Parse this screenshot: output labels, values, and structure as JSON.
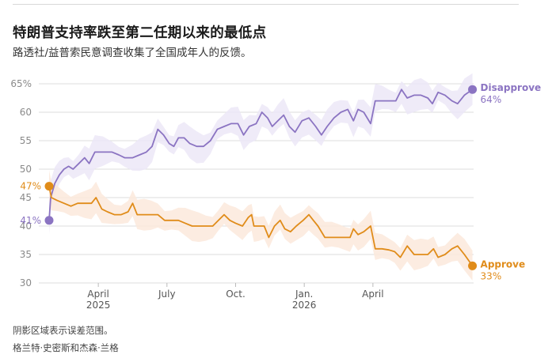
{
  "title": "特朗普支持率跌至第二任期以来的最低点",
  "subtitle": "路透社/益普索民意调查收集了全国成年人的反馈。",
  "footnotes": {
    "note": "阴影区域表示误差范围。",
    "credit": "格兰特·史密斯和杰森·兰格"
  },
  "chart_data": {
    "type": "line",
    "title": "特朗普支持率跌至第二任期以来的最低点",
    "subtitle": "路透社/益普索民意调查收集了全国成年人的反馈。",
    "x_unit": "month",
    "xlim": [
      0.0,
      19.0
    ],
    "ylim": [
      30,
      65
    ],
    "y_ticks": [
      30,
      35,
      40,
      45,
      50,
      55,
      60,
      65
    ],
    "y_tick_labels": [
      "30",
      "35",
      "40",
      "45",
      "50",
      "55",
      "60",
      "65%"
    ],
    "x_ticks": [
      {
        "x": 2.6,
        "label": "April",
        "sublabel": "2025"
      },
      {
        "x": 5.6,
        "label": "July",
        "sublabel": ""
      },
      {
        "x": 8.6,
        "label": "Oct.",
        "sublabel": ""
      },
      {
        "x": 11.6,
        "label": "Jan.",
        "sublabel": "2026"
      },
      {
        "x": 14.6,
        "label": "April",
        "sublabel": ""
      }
    ],
    "grid": true,
    "shaded_band": "margin of error",
    "series": [
      {
        "name": "Disapprove",
        "color": "#8b74c2",
        "band_color": "#ece8f7",
        "start_label": "41%",
        "end_label": "64%",
        "points": [
          [
            0.45,
            41
          ],
          [
            0.52,
            45
          ],
          [
            0.7,
            47.5
          ],
          [
            0.9,
            49
          ],
          [
            1.1,
            50
          ],
          [
            1.3,
            50.5
          ],
          [
            1.5,
            50
          ],
          [
            1.75,
            51
          ],
          [
            2.0,
            52
          ],
          [
            2.2,
            51
          ],
          [
            2.45,
            53
          ],
          [
            2.8,
            53
          ],
          [
            3.2,
            53
          ],
          [
            3.5,
            52.5
          ],
          [
            3.75,
            52
          ],
          [
            4.1,
            52
          ],
          [
            4.4,
            52.5
          ],
          [
            4.7,
            53
          ],
          [
            4.95,
            54
          ],
          [
            5.2,
            57
          ],
          [
            5.45,
            56
          ],
          [
            5.7,
            54.5
          ],
          [
            5.9,
            54
          ],
          [
            6.1,
            55.5
          ],
          [
            6.35,
            55.5
          ],
          [
            6.6,
            54.5
          ],
          [
            6.9,
            54
          ],
          [
            7.2,
            54
          ],
          [
            7.5,
            55
          ],
          [
            7.8,
            57
          ],
          [
            8.1,
            57.5
          ],
          [
            8.4,
            58
          ],
          [
            8.7,
            58
          ],
          [
            8.95,
            56
          ],
          [
            9.2,
            57.5
          ],
          [
            9.5,
            58
          ],
          [
            9.75,
            60
          ],
          [
            10.0,
            59
          ],
          [
            10.2,
            57.5
          ],
          [
            10.45,
            58.5
          ],
          [
            10.7,
            59.5
          ],
          [
            10.95,
            57.5
          ],
          [
            11.2,
            56.5
          ],
          [
            11.5,
            58.5
          ],
          [
            11.8,
            59
          ],
          [
            12.1,
            57.5
          ],
          [
            12.35,
            56
          ],
          [
            12.6,
            57.5
          ],
          [
            12.9,
            59
          ],
          [
            13.2,
            60
          ],
          [
            13.5,
            60.5
          ],
          [
            13.75,
            58.5
          ],
          [
            13.95,
            60.5
          ],
          [
            14.2,
            60
          ],
          [
            14.5,
            58
          ],
          [
            14.7,
            62
          ],
          [
            15.0,
            62
          ],
          [
            15.3,
            62
          ],
          [
            15.6,
            62
          ],
          [
            15.85,
            64
          ],
          [
            16.1,
            62.5
          ],
          [
            16.4,
            63
          ],
          [
            16.7,
            63
          ],
          [
            17.0,
            62.5
          ],
          [
            17.2,
            61.5
          ],
          [
            17.45,
            63.5
          ],
          [
            17.75,
            63
          ],
          [
            18.05,
            62
          ],
          [
            18.3,
            61.5
          ],
          [
            18.6,
            63
          ],
          [
            18.95,
            64
          ]
        ]
      },
      {
        "name": "Approve",
        "color": "#e08c1a",
        "band_color": "#fce9dc",
        "start_label": "47%",
        "end_label": "33%",
        "points": [
          [
            0.45,
            47
          ],
          [
            0.55,
            45
          ],
          [
            0.8,
            44.5
          ],
          [
            1.1,
            44
          ],
          [
            1.4,
            43.5
          ],
          [
            1.7,
            44
          ],
          [
            2.0,
            44
          ],
          [
            2.3,
            44
          ],
          [
            2.5,
            45
          ],
          [
            2.75,
            43
          ],
          [
            3.0,
            42.5
          ],
          [
            3.3,
            42
          ],
          [
            3.6,
            42
          ],
          [
            3.9,
            42.5
          ],
          [
            4.1,
            44
          ],
          [
            4.3,
            42
          ],
          [
            4.6,
            42
          ],
          [
            4.9,
            42
          ],
          [
            5.2,
            42
          ],
          [
            5.5,
            41
          ],
          [
            5.8,
            41
          ],
          [
            6.1,
            41
          ],
          [
            6.4,
            40.5
          ],
          [
            6.7,
            40
          ],
          [
            7.0,
            40
          ],
          [
            7.3,
            40
          ],
          [
            7.6,
            40
          ],
          [
            7.85,
            41
          ],
          [
            8.1,
            42
          ],
          [
            8.35,
            41
          ],
          [
            8.6,
            40.5
          ],
          [
            8.9,
            40
          ],
          [
            9.15,
            41.5
          ],
          [
            9.3,
            42
          ],
          [
            9.4,
            40
          ],
          [
            9.6,
            40
          ],
          [
            9.85,
            40
          ],
          [
            10.05,
            38
          ],
          [
            10.3,
            40
          ],
          [
            10.55,
            41
          ],
          [
            10.75,
            39.5
          ],
          [
            11.0,
            39
          ],
          [
            11.25,
            40
          ],
          [
            11.55,
            41
          ],
          [
            11.8,
            42
          ],
          [
            12.0,
            41
          ],
          [
            12.2,
            40
          ],
          [
            12.5,
            38
          ],
          [
            12.8,
            38
          ],
          [
            13.1,
            38
          ],
          [
            13.4,
            38
          ],
          [
            13.6,
            38
          ],
          [
            13.75,
            39.5
          ],
          [
            13.95,
            38.5
          ],
          [
            14.2,
            39
          ],
          [
            14.5,
            40
          ],
          [
            14.7,
            36
          ],
          [
            15.0,
            36
          ],
          [
            15.3,
            35.8
          ],
          [
            15.55,
            35.5
          ],
          [
            15.8,
            34.5
          ],
          [
            16.1,
            36.5
          ],
          [
            16.4,
            35
          ],
          [
            16.7,
            35
          ],
          [
            17.0,
            35
          ],
          [
            17.25,
            36
          ],
          [
            17.45,
            34.5
          ],
          [
            17.75,
            35
          ],
          [
            18.05,
            36
          ],
          [
            18.3,
            36.5
          ],
          [
            18.6,
            35
          ],
          [
            18.95,
            33
          ]
        ]
      }
    ]
  }
}
